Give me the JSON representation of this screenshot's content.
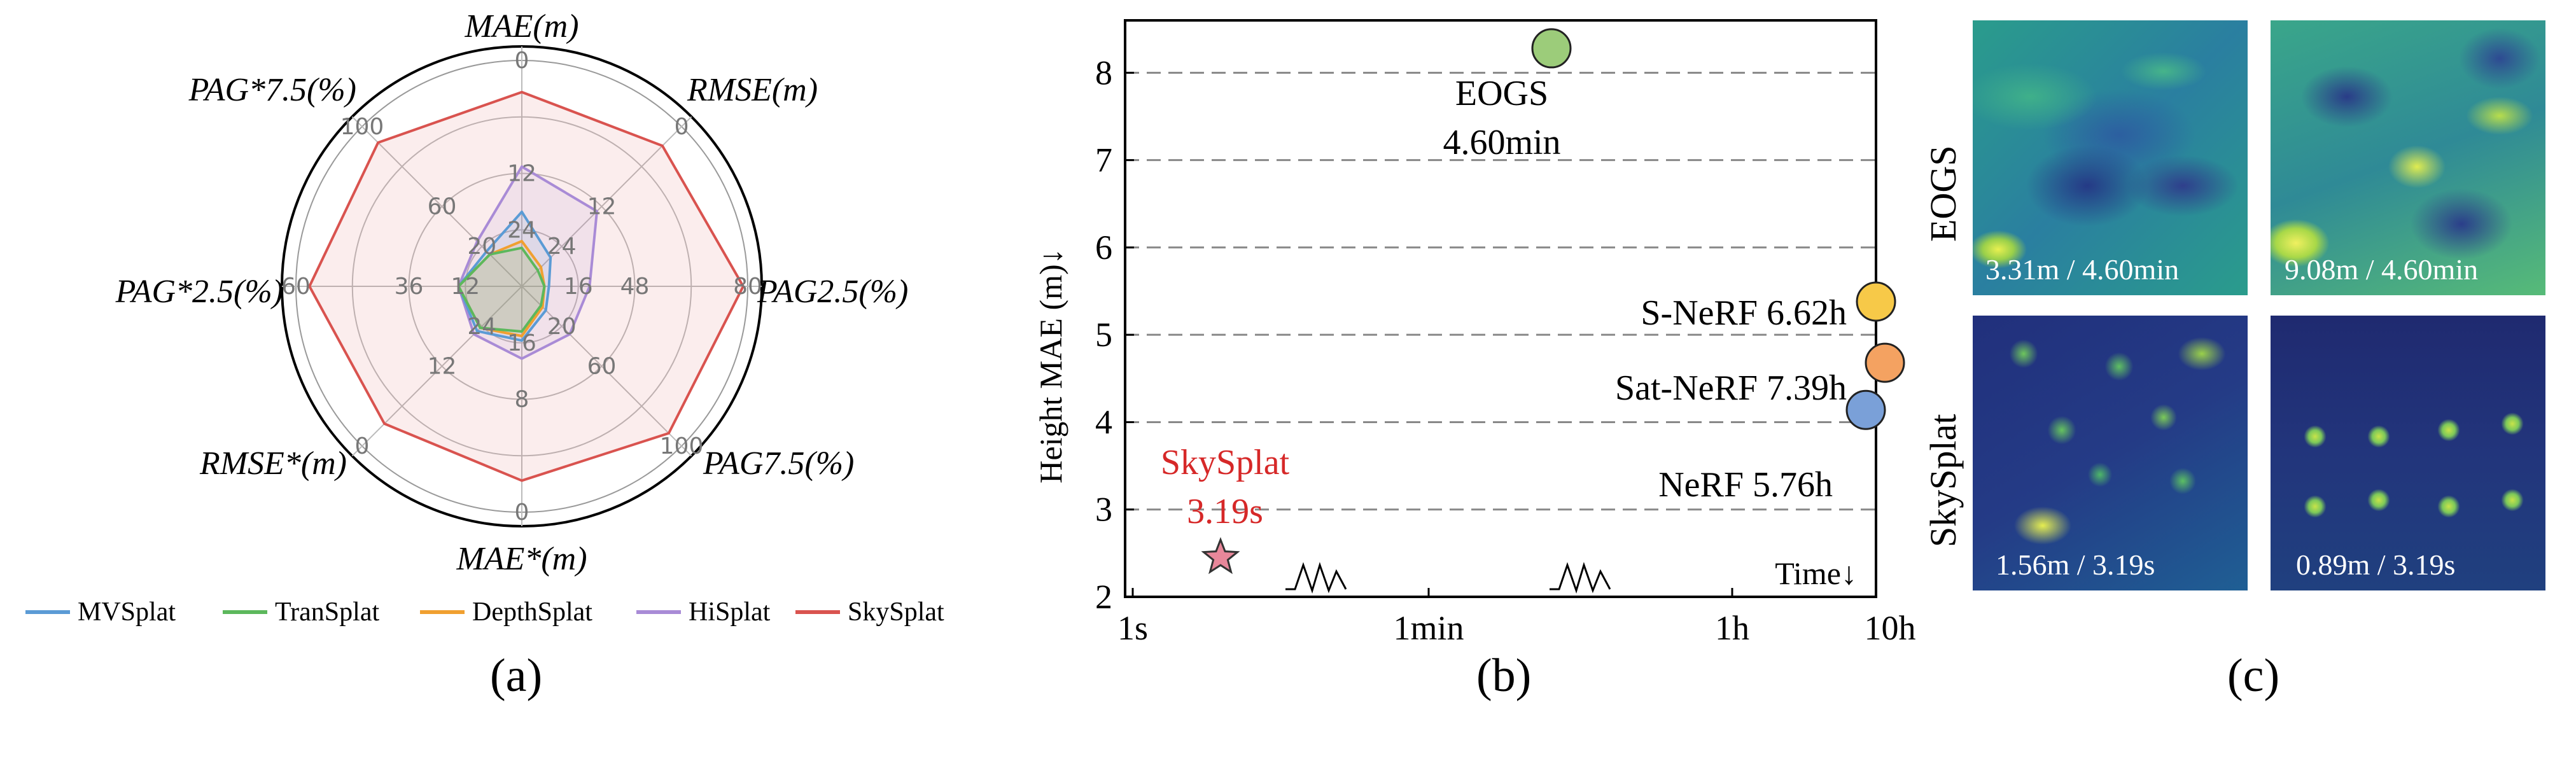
{
  "chart_data": [
    {
      "panel": "(a)",
      "type": "radar",
      "axes": [
        {
          "label": "MAE(m)",
          "ticks": [
            "0",
            "12",
            "24"
          ]
        },
        {
          "label": "RMSE(m)",
          "ticks": [
            "0",
            "12",
            "24"
          ]
        },
        {
          "label": "PAG2.5(%)",
          "ticks": [
            "80",
            "48",
            "16"
          ]
        },
        {
          "label": "PAG7.5(%)",
          "ticks": [
            "100",
            "60",
            "20"
          ]
        },
        {
          "label": "MAE*(m)",
          "ticks": [
            "0",
            "8",
            "16"
          ]
        },
        {
          "label": "RMSE*(m)",
          "ticks": [
            "0",
            "12",
            "24"
          ]
        },
        {
          "label": "PAG*2.5(%)",
          "ticks": [
            "60",
            "36",
            "12"
          ]
        },
        {
          "label": "PAG*7.5(%)",
          "ticks": [
            "100",
            "60",
            "20"
          ]
        }
      ],
      "series": [
        {
          "name": "MVSplat",
          "color": "#5b9bd5",
          "values": [
            0.33,
            0.18,
            0.12,
            0.15,
            0.24,
            0.28,
            0.28,
            0.22
          ]
        },
        {
          "name": "TranSplat",
          "color": "#5cb85c",
          "values": [
            0.17,
            0.1,
            0.1,
            0.12,
            0.2,
            0.26,
            0.28,
            0.2
          ]
        },
        {
          "name": "DepthSplat",
          "color": "#f0a030",
          "values": [
            0.2,
            0.12,
            0.1,
            0.13,
            0.22,
            0.26,
            0.28,
            0.2
          ]
        },
        {
          "name": "HiSplat",
          "color": "#a98bd6",
          "values": [
            0.53,
            0.47,
            0.3,
            0.3,
            0.32,
            0.3,
            0.28,
            0.28
          ]
        },
        {
          "name": "SkySplat",
          "color": "#d9534f",
          "values": [
            0.86,
            0.88,
            0.98,
            0.92,
            0.86,
            0.86,
            0.94,
            0.9
          ]
        }
      ]
    },
    {
      "panel": "(b)",
      "type": "scatter",
      "ylabel": "Height MAE (m)↓",
      "xlabel": "Time↓",
      "yticks": [
        "2",
        "3",
        "4",
        "5",
        "6",
        "7",
        "8"
      ],
      "ylim": [
        2,
        8.6
      ],
      "xticks": [
        "1s",
        "1min",
        "1h",
        "10h"
      ],
      "points": [
        {
          "name": "EOGS",
          "time": "4.60min",
          "mae": 8.28,
          "color": "#9ccc7a"
        },
        {
          "name": "S-NeRF",
          "time": "6.62h",
          "mae": 5.38,
          "color": "#f7c948"
        },
        {
          "name": "Sat-NeRF",
          "time": "7.39h",
          "mae": 4.68,
          "color": "#f4a261"
        },
        {
          "name": "NeRF",
          "time": "5.76h",
          "mae": 4.14,
          "color": "#7aa0d8"
        },
        {
          "name": "SkySplat",
          "time": "3.19s",
          "mae": 2.45,
          "color": "#e8879a"
        }
      ]
    }
  ],
  "legend": [
    "MVSplat",
    "TranSplat",
    "DepthSplat",
    "HiSplat",
    "SkySplat"
  ],
  "panel_c": {
    "rows": [
      "EOGS",
      "SkySplat"
    ],
    "tiles": [
      "3.31m / 4.60min",
      "9.08m / 4.60min",
      "1.56m / 3.19s",
      "0.89m / 3.19s"
    ]
  },
  "sub_labels": [
    "(a)",
    "(b)",
    "(c)"
  ],
  "colors": {
    "viridis_dark": "#2a1f6e",
    "viridis_mid": "#2a9c8c",
    "viridis_light": "#c8e34a"
  }
}
